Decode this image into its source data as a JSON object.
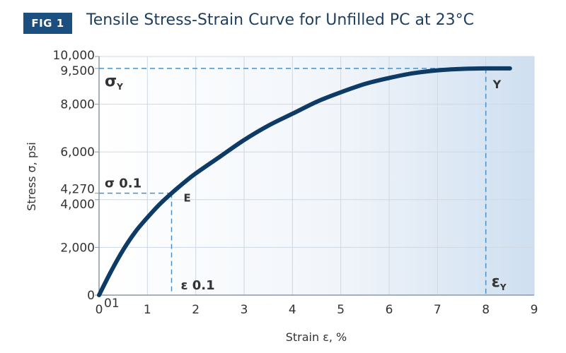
{
  "badge": "FIG 1",
  "title": "Tensile Stress-Strain Curve for Unfilled PC at 23°C",
  "chart_data": {
    "type": "line",
    "title": "Tensile Stress-Strain Curve for Unfilled PC at 23°C",
    "xlabel": "Strain ε, %",
    "ylabel": "Stress σ, psi",
    "xlim": [
      0,
      9
    ],
    "ylim": [
      0,
      10000
    ],
    "x_ticks": [
      "0",
      "1",
      "2",
      "3",
      "4",
      "5",
      "6",
      "7",
      "8",
      "9"
    ],
    "x_tick_extra": "01",
    "y_ticks": [
      {
        "value": 0,
        "label": "0"
      },
      {
        "value": 2000,
        "label": "2,000"
      },
      {
        "value": 4000,
        "label": "4,000"
      },
      {
        "value": 4270,
        "label": "4,270"
      },
      {
        "value": 6000,
        "label": "6,000"
      },
      {
        "value": 8000,
        "label": "8,000"
      },
      {
        "value": 9500,
        "label": "9,500"
      },
      {
        "value": 10000,
        "label": "10,000"
      }
    ],
    "grid": true,
    "series": [
      {
        "color": "#0d3b66",
        "x": [
          0,
          0.25,
          0.5,
          0.75,
          1.0,
          1.25,
          1.5,
          1.75,
          2.0,
          2.5,
          3.0,
          3.5,
          4.0,
          4.5,
          5.0,
          5.5,
          6.0,
          6.5,
          7.0,
          7.5,
          8.0,
          8.5
        ],
        "y": [
          0,
          1000,
          1900,
          2650,
          3250,
          3800,
          4270,
          4700,
          5100,
          5800,
          6500,
          7100,
          7600,
          8100,
          8500,
          8850,
          9100,
          9300,
          9420,
          9480,
          9500,
          9500
        ]
      }
    ],
    "annotations": {
      "sigma_y": {
        "symbol": "σ",
        "sub": "Y",
        "value": 9500
      },
      "point_y": {
        "label": "Y",
        "x": 8.0,
        "y": 9500
      },
      "sigma_01": {
        "label": "σ 0.1",
        "value": 4270
      },
      "point_e": {
        "label": "E",
        "x": 1.5,
        "y": 4270
      },
      "eps_01": {
        "label": "ε 0.1",
        "value": 1.5
      },
      "eps_y": {
        "symbol": "ε",
        "sub": "Y",
        "value": 8.0
      }
    },
    "colors": {
      "curve": "#0d3b66",
      "guides": "#4a90c8",
      "grid": "#cfd8e2",
      "badge": "#1b4f80"
    }
  }
}
